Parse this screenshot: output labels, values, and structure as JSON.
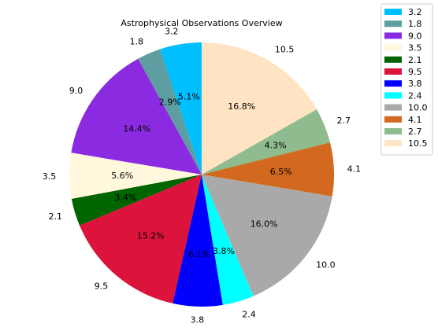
{
  "chart_data": {
    "type": "pie",
    "title": "Astrophysical Observations Overview",
    "start_angle_deg": 90,
    "direction": "counterclockwise",
    "legend_position": "right",
    "slices": [
      {
        "label": "3.2",
        "value": 3.2,
        "percent": "5.1%",
        "color": "#00BFFF"
      },
      {
        "label": "1.8",
        "value": 1.8,
        "percent": "2.9%",
        "color": "#5F9EA0"
      },
      {
        "label": "9.0",
        "value": 9.0,
        "percent": "14.4%",
        "color": "#8A2BE2"
      },
      {
        "label": "3.5",
        "value": 3.5,
        "percent": "5.6%",
        "color": "#FFF8DC"
      },
      {
        "label": "2.1",
        "value": 2.1,
        "percent": "3.4%",
        "color": "#006400"
      },
      {
        "label": "9.5",
        "value": 9.5,
        "percent": "15.2%",
        "color": "#DC143C"
      },
      {
        "label": "3.8",
        "value": 3.8,
        "percent": "6.1%",
        "color": "#0000FF"
      },
      {
        "label": "2.4",
        "value": 2.4,
        "percent": "3.8%",
        "color": "#00FFFF"
      },
      {
        "label": "10.0",
        "value": 10.0,
        "percent": "16.0%",
        "color": "#A9A9A9"
      },
      {
        "label": "4.1",
        "value": 4.1,
        "percent": "6.5%",
        "color": "#D2691E"
      },
      {
        "label": "2.7",
        "value": 2.7,
        "percent": "4.3%",
        "color": "#8FBC8F"
      },
      {
        "label": "10.5",
        "value": 10.5,
        "percent": "16.8%",
        "color": "#FFE4C4"
      }
    ]
  }
}
